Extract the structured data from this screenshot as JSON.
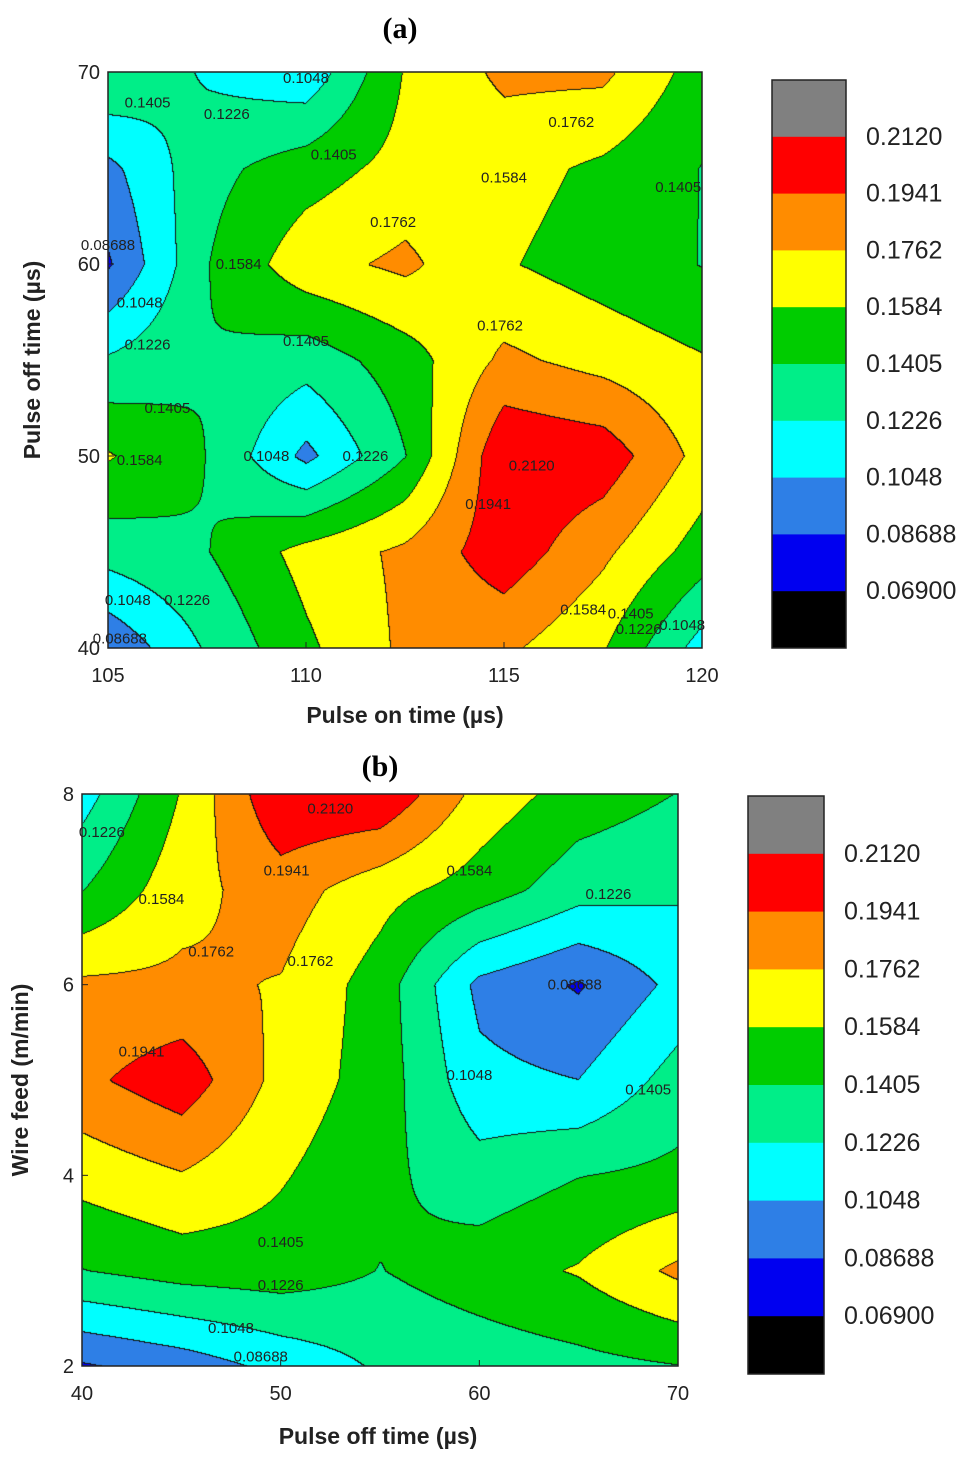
{
  "chart_data": [
    {
      "type": "heatmap",
      "title": "(a)",
      "xlabel": "Pulse on time (µs)",
      "ylabel": "Pulse off time (µs)",
      "xlim": [
        105,
        120
      ],
      "ylim": [
        40,
        70
      ],
      "x_ticks": [
        "105",
        "110",
        "115",
        "120"
      ],
      "y_ticks": [
        "40",
        "50",
        "60",
        "70"
      ],
      "levels": [
        "0.06900",
        "0.08688",
        "0.1048",
        "0.1226",
        "0.1405",
        "0.1584",
        "0.1762",
        "0.1941",
        "0.2120"
      ],
      "level_colors": [
        "#000000",
        "#0000f0",
        "#2e7fe6",
        "#00ffff",
        "#00ee88",
        "#00cc00",
        "#ffff00",
        "#ff8c00",
        "#ff0000",
        "#808080"
      ],
      "x": [
        105,
        107.5,
        110,
        112.5,
        115,
        117.5,
        120
      ],
      "y": [
        40,
        45,
        50,
        55,
        60,
        65,
        70
      ],
      "z": [
        [
          0.09,
          0.125,
          0.155,
          0.18,
          0.18,
          0.16,
          0.115
        ],
        [
          0.13,
          0.14,
          0.165,
          0.18,
          0.205,
          0.18,
          0.15
        ],
        [
          0.16,
          0.14,
          0.1,
          0.14,
          0.21,
          0.205,
          0.17
        ],
        [
          0.125,
          0.14,
          0.13,
          0.15,
          0.18,
          0.17,
          0.16
        ],
        [
          0.085,
          0.14,
          0.17,
          0.18,
          0.16,
          0.15,
          0.14
        ],
        [
          0.1,
          0.135,
          0.15,
          0.165,
          0.165,
          0.155,
          0.14
        ],
        [
          0.14,
          0.12,
          0.11,
          0.16,
          0.18,
          0.18,
          0.15
        ]
      ],
      "contour_labels": [
        {
          "text": "0.1048",
          "x": 109.0,
          "y": 50.0
        },
        {
          "text": "0.1226",
          "x": 111.5,
          "y": 50.0
        },
        {
          "text": "0.1405",
          "x": 106.5,
          "y": 52.5
        },
        {
          "text": "0.1584",
          "x": 105.8,
          "y": 49.8
        },
        {
          "text": "0.2120",
          "x": 115.7,
          "y": 49.5
        },
        {
          "text": "0.1941",
          "x": 114.6,
          "y": 47.5
        },
        {
          "text": "0.1762",
          "x": 114.9,
          "y": 56.8
        },
        {
          "text": "0.1405",
          "x": 110.0,
          "y": 56.0
        },
        {
          "text": "0.1226",
          "x": 106.0,
          "y": 55.8
        },
        {
          "text": "0.1048",
          "x": 105.8,
          "y": 58.0
        },
        {
          "text": "0.08688",
          "x": 105.0,
          "y": 61.0
        },
        {
          "text": "0.1584",
          "x": 108.3,
          "y": 60.0
        },
        {
          "text": "0.1762",
          "x": 112.2,
          "y": 62.2
        },
        {
          "text": "0.1584",
          "x": 115.0,
          "y": 64.5
        },
        {
          "text": "0.1405",
          "x": 119.4,
          "y": 64.0
        },
        {
          "text": "0.1762",
          "x": 116.7,
          "y": 67.4
        },
        {
          "text": "0.1405",
          "x": 110.7,
          "y": 65.7
        },
        {
          "text": "0.1405",
          "x": 106.0,
          "y": 68.4
        },
        {
          "text": "0.1226",
          "x": 108.0,
          "y": 67.8
        },
        {
          "text": "0.1048",
          "x": 110.0,
          "y": 69.7
        },
        {
          "text": "0.1048",
          "x": 105.5,
          "y": 42.5
        },
        {
          "text": "0.1226",
          "x": 107.0,
          "y": 42.5
        },
        {
          "text": "0.08688",
          "x": 105.3,
          "y": 40.5
        },
        {
          "text": "0.1584",
          "x": 117.0,
          "y": 42.0
        },
        {
          "text": "0.1405",
          "x": 118.2,
          "y": 41.8
        },
        {
          "text": "0.1226",
          "x": 118.4,
          "y": 41.0
        },
        {
          "text": "0.1048",
          "x": 119.5,
          "y": 41.2
        }
      ]
    },
    {
      "type": "heatmap",
      "title": "(b)",
      "xlabel": "Pulse off time (µs)",
      "ylabel": "Wire feed (m/min)",
      "xlim": [
        40,
        70
      ],
      "ylim": [
        2,
        8
      ],
      "x_ticks": [
        "40",
        "50",
        "60",
        "70"
      ],
      "y_ticks": [
        "2",
        "4",
        "6",
        "8"
      ],
      "levels": [
        "0.06900",
        "0.08688",
        "0.1048",
        "0.1226",
        "0.1405",
        "0.1584",
        "0.1762",
        "0.1941",
        "0.2120"
      ],
      "level_colors": [
        "#000000",
        "#0000f0",
        "#2e7fe6",
        "#00ffff",
        "#00ee88",
        "#00cc00",
        "#ffff00",
        "#ff8c00",
        "#ff0000",
        "#808080"
      ],
      "x": [
        40,
        45,
        50,
        55,
        60,
        65,
        70
      ],
      "y": [
        2,
        3,
        4,
        5,
        6,
        7,
        8
      ],
      "z": [
        [
          0.085,
          0.095,
          0.11,
          0.125,
          0.13,
          0.135,
          0.14
        ],
        [
          0.14,
          0.148,
          0.15,
          0.14,
          0.15,
          0.16,
          0.18
        ],
        [
          0.165,
          0.175,
          0.16,
          0.145,
          0.13,
          0.14,
          0.145
        ],
        [
          0.19,
          0.205,
          0.17,
          0.15,
          0.11,
          0.105,
          0.13
        ],
        [
          0.18,
          0.18,
          0.175,
          0.15,
          0.1,
          0.085,
          0.11
        ],
        [
          0.14,
          0.17,
          0.185,
          0.165,
          0.15,
          0.13,
          0.125
        ],
        [
          0.115,
          0.16,
          0.21,
          0.21,
          0.17,
          0.15,
          0.14
        ]
      ],
      "contour_labels": [
        {
          "text": "0.2120",
          "x": 52.5,
          "y": 7.85
        },
        {
          "text": "0.1941",
          "x": 50.3,
          "y": 7.2
        },
        {
          "text": "0.1226",
          "x": 41.0,
          "y": 7.6
        },
        {
          "text": "0.1584",
          "x": 44.0,
          "y": 6.9
        },
        {
          "text": "0.1584",
          "x": 59.5,
          "y": 7.2
        },
        {
          "text": "0.1226",
          "x": 66.5,
          "y": 6.95
        },
        {
          "text": "0.1762",
          "x": 46.5,
          "y": 6.35
        },
        {
          "text": "0.1762",
          "x": 51.5,
          "y": 6.25
        },
        {
          "text": "0.08688",
          "x": 64.8,
          "y": 6.0
        },
        {
          "text": "0.1941",
          "x": 43.0,
          "y": 5.3
        },
        {
          "text": "0.1048",
          "x": 59.5,
          "y": 5.05
        },
        {
          "text": "0.1405",
          "x": 68.5,
          "y": 4.9
        },
        {
          "text": "0.1405",
          "x": 50.0,
          "y": 3.3
        },
        {
          "text": "0.1226",
          "x": 50.0,
          "y": 2.85
        },
        {
          "text": "0.1048",
          "x": 47.5,
          "y": 2.4
        },
        {
          "text": "0.08688",
          "x": 49.0,
          "y": 2.1
        }
      ]
    }
  ]
}
